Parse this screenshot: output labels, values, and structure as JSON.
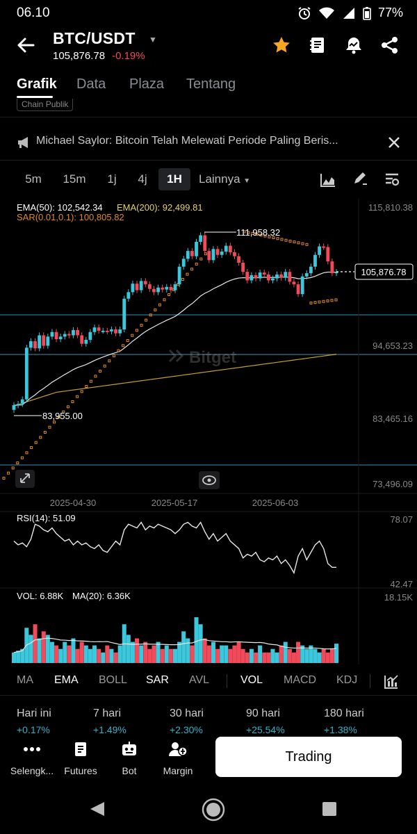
{
  "status": {
    "time": "06.10",
    "battery": "77%"
  },
  "header": {
    "pair": "BTC/USDT",
    "price": "105,876.78",
    "change": "-0.19%"
  },
  "tabs": [
    {
      "label": "Grafik"
    },
    {
      "label": "Data"
    },
    {
      "label": "Plaza"
    },
    {
      "label": "Tentang"
    }
  ],
  "chip_peek": "Chain Publik",
  "news": {
    "text": "Michael Saylor: Bitcoin Telah Melewati Periode Paling Beris..."
  },
  "timeframes": [
    {
      "label": "5m"
    },
    {
      "label": "15m"
    },
    {
      "label": "1j"
    },
    {
      "label": "4j"
    },
    {
      "label": "1H"
    },
    {
      "label": "Lainnya"
    }
  ],
  "chart": {
    "ema_legend": "EMA(50): 102,542.34",
    "ema200_legend": "EMA(200): 92,499.81",
    "sar_legend": "SAR(0.01,0.1): 100,805.82",
    "y_labels": [
      "115,810.38",
      "94,653.23",
      "83,465.16",
      "73,496.09"
    ],
    "x_labels": [
      "2025-04-30",
      "2025-05-17",
      "2025-06-03"
    ],
    "high_label": "111,958.32",
    "low_label": "83,955.00",
    "current_price": "105,876.78",
    "watermark": "Bitget",
    "rsi_legend": "RSI(14): 51.09",
    "rsi_max": "78.07",
    "rsi_min": "42.47",
    "vol_legend": "VOL: 6.88K",
    "vol_ma_legend": "MA(20): 6.36K",
    "vol_max": "18.15K",
    "colors": {
      "up": "#3cc8dc",
      "down": "#f2495b",
      "ema50": "#e8e8e8",
      "ema200": "#c9a227",
      "sar": "#e08a2a"
    }
  },
  "indicators": [
    {
      "label": "MA",
      "on": false
    },
    {
      "label": "EMA",
      "on": true
    },
    {
      "label": "BOLL",
      "on": false
    },
    {
      "label": "SAR",
      "on": true
    },
    {
      "label": "AVL",
      "on": false
    },
    {
      "label": "VOL",
      "on": true
    },
    {
      "label": "MACD",
      "on": false
    },
    {
      "label": "KDJ",
      "on": false
    }
  ],
  "performance": [
    {
      "label": "Hari ini",
      "value": "+0.17%"
    },
    {
      "label": "7 hari",
      "value": "+1.49%"
    },
    {
      "label": "30 hari",
      "value": "+2.30%"
    },
    {
      "label": "90 hari",
      "value": "+25.54%"
    },
    {
      "label": "180 hari",
      "value": "+1.38%"
    }
  ],
  "bottom_nav": [
    {
      "label": "Selengk...",
      "icon": "more-dots-icon"
    },
    {
      "label": "Futures",
      "icon": "futures-icon"
    },
    {
      "label": "Bot",
      "icon": "bot-icon"
    },
    {
      "label": "Margin",
      "icon": "margin-icon"
    }
  ],
  "trade_button": "Trading"
}
